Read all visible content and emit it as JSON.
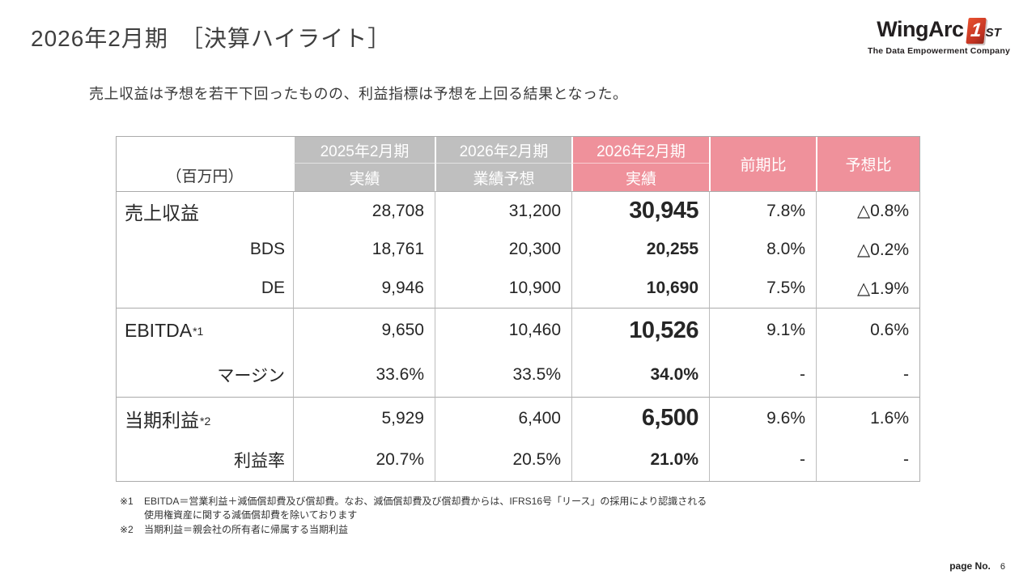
{
  "slide": {
    "title": "2026年2月期　［決算ハイライト］",
    "subtitle": "売上収益は予想を若干下回ったものの、利益指標は予想を上回る結果となった。",
    "page_label": "page No.",
    "page_number": "6"
  },
  "logo": {
    "brand": "WingArc",
    "badge": "1",
    "suffix": "ST",
    "tagline": "The Data Empowerment Company",
    "accent_color": "#c23322"
  },
  "table": {
    "unit_label": "（百万円）",
    "colors": {
      "gray_header_bg": "#bfbfbf",
      "pink_header_bg": "#ef919b",
      "grid_line": "#ababab",
      "body_text": "#262626"
    },
    "columns": [
      {
        "period": "2025年2月期",
        "sub": "実績",
        "theme": "gray"
      },
      {
        "period": "2026年2月期",
        "sub": "業績予想",
        "theme": "gray"
      },
      {
        "period": "2026年2月期",
        "sub": "実績",
        "theme": "pink"
      },
      {
        "label": "前期比",
        "theme": "pink"
      },
      {
        "label": "予想比",
        "theme": "pink"
      }
    ],
    "rows": [
      {
        "label": "売上収益",
        "label_note": "",
        "type": "main",
        "group_start": true,
        "values": [
          "28,708",
          "31,200",
          "30,945",
          "7.8%",
          "△0.8%"
        ]
      },
      {
        "label": "BDS",
        "label_note": "",
        "type": "sub",
        "group_start": false,
        "values": [
          "18,761",
          "20,300",
          "20,255",
          "8.0%",
          "△0.2%"
        ]
      },
      {
        "label": "DE",
        "label_note": "",
        "type": "sub",
        "group_start": false,
        "values": [
          "9,946",
          "10,900",
          "10,690",
          "7.5%",
          "△1.9%"
        ]
      },
      {
        "label": "EBITDA",
        "label_note": "*1",
        "type": "main",
        "group_start": true,
        "values": [
          "9,650",
          "10,460",
          "10,526",
          "9.1%",
          "0.6%"
        ]
      },
      {
        "label": "マージン",
        "label_note": "",
        "type": "sub",
        "group_start": false,
        "values": [
          "33.6%",
          "33.5%",
          "34.0%",
          "-",
          "-"
        ]
      },
      {
        "label": "当期利益",
        "label_note": "*2",
        "type": "main",
        "group_start": true,
        "values": [
          "5,929",
          "6,400",
          "6,500",
          "9.6%",
          "1.6%"
        ]
      },
      {
        "label": "利益率",
        "label_note": "",
        "type": "sub",
        "group_start": false,
        "values": [
          "20.7%",
          "20.5%",
          "21.0%",
          "-",
          "-"
        ]
      }
    ]
  },
  "footnotes": [
    {
      "marker": "※1",
      "lines": [
        "EBITDA＝営業利益＋減価償却費及び償却費。なお、減価償却費及び償却費からは、IFRS16号「リース」の採用により認識される",
        "使用権資産に関する減価償却費を除いております"
      ]
    },
    {
      "marker": "※2",
      "lines": [
        "当期利益＝親会社の所有者に帰属する当期利益"
      ]
    }
  ]
}
